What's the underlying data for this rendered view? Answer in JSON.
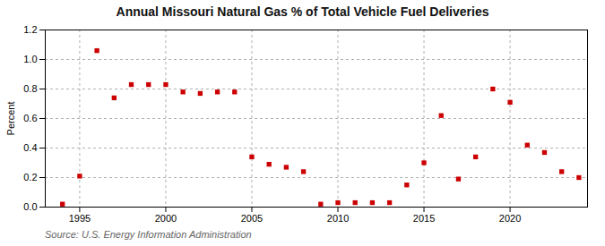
{
  "chart_data": {
    "type": "scatter",
    "title": "Annual Missouri Natural Gas % of Total Vehicle Fuel Deliveries",
    "ylabel": "Percent",
    "annotations": [
      "Source: U.S. Energy Information Administration"
    ],
    "x": [
      1994,
      1995,
      1996,
      1997,
      1998,
      1999,
      2000,
      2001,
      2002,
      2003,
      2004,
      2005,
      2006,
      2007,
      2008,
      2009,
      2010,
      2011,
      2012,
      2013,
      2014,
      2015,
      2016,
      2017,
      2018,
      2019,
      2020,
      2021,
      2022,
      2023,
      2024
    ],
    "values": [
      0.02,
      0.21,
      1.06,
      0.74,
      0.83,
      0.83,
      0.83,
      0.78,
      0.77,
      0.78,
      0.78,
      0.34,
      0.29,
      0.27,
      0.24,
      0.02,
      0.03,
      0.03,
      0.03,
      0.03,
      0.15,
      0.3,
      0.62,
      0.19,
      0.34,
      0.8,
      0.71,
      0.42,
      0.37,
      0.24,
      0.2
    ],
    "color": "#cc0000",
    "marker": "square",
    "xlim": [
      1993.0,
      2024.5
    ],
    "xticks": [
      1995,
      2000,
      2005,
      2010,
      2015,
      2020
    ],
    "ylim": [
      0.0,
      1.2
    ],
    "yticks": [
      {
        "value": 0,
        "label": "0.0"
      },
      0.2,
      0.4,
      0.6,
      0.8,
      {
        "value": 1,
        "label": "1.0"
      },
      1.2
    ],
    "grid": true
  }
}
